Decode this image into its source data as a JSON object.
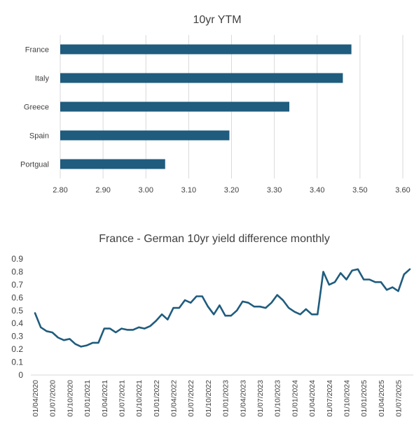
{
  "colors": {
    "series": "#1f5c7e",
    "grid": "#d9d9d9",
    "text": "#404040"
  },
  "chart_data": [
    {
      "type": "bar",
      "orientation": "horizontal",
      "title": "10yr YTM",
      "categories": [
        "France",
        "Italy",
        "Greece",
        "Spain",
        "Portgual"
      ],
      "values": [
        3.48,
        3.46,
        3.335,
        3.195,
        3.045
      ],
      "xlim": [
        2.8,
        3.6
      ],
      "xticks": [
        "2.80",
        "2.90",
        "3.00",
        "3.10",
        "3.20",
        "3.30",
        "3.40",
        "3.50",
        "3.60"
      ],
      "grid": "vertical",
      "legend": "none"
    },
    {
      "type": "line",
      "title": "France - German 10yr yield difference monthly",
      "x": [
        "2020-04",
        "2020-05",
        "2020-06",
        "2020-07",
        "2020-08",
        "2020-09",
        "2020-10",
        "2020-11",
        "2020-12",
        "2021-01",
        "2021-02",
        "2021-03",
        "2021-04",
        "2021-05",
        "2021-06",
        "2021-07",
        "2021-08",
        "2021-09",
        "2021-10",
        "2021-11",
        "2021-12",
        "2022-01",
        "2022-02",
        "2022-03",
        "2022-04",
        "2022-05",
        "2022-06",
        "2022-07",
        "2022-08",
        "2022-09",
        "2022-10",
        "2022-11",
        "2022-12",
        "2023-01",
        "2023-02",
        "2023-03",
        "2023-04",
        "2023-05",
        "2023-06",
        "2023-07",
        "2023-08",
        "2023-09",
        "2023-10",
        "2023-11",
        "2023-12",
        "2024-01",
        "2024-02",
        "2024-03",
        "2024-04",
        "2024-05",
        "2024-06",
        "2024-07",
        "2024-08",
        "2024-09",
        "2024-10",
        "2024-11",
        "2024-12",
        "2025-01",
        "2025-02",
        "2025-03",
        "2025-04",
        "2025-05",
        "2025-06",
        "2025-07",
        "2025-08",
        "2025-09"
      ],
      "values": [
        0.48,
        0.37,
        0.34,
        0.33,
        0.29,
        0.27,
        0.28,
        0.24,
        0.22,
        0.23,
        0.25,
        0.25,
        0.36,
        0.36,
        0.33,
        0.36,
        0.35,
        0.35,
        0.37,
        0.36,
        0.38,
        0.42,
        0.47,
        0.43,
        0.52,
        0.52,
        0.58,
        0.56,
        0.61,
        0.61,
        0.53,
        0.47,
        0.54,
        0.46,
        0.46,
        0.5,
        0.57,
        0.56,
        0.53,
        0.53,
        0.52,
        0.56,
        0.62,
        0.58,
        0.52,
        0.49,
        0.47,
        0.51,
        0.47,
        0.47,
        0.8,
        0.7,
        0.72,
        0.79,
        0.74,
        0.81,
        0.82,
        0.74,
        0.74,
        0.72,
        0.72,
        0.66,
        0.68,
        0.65,
        0.78,
        0.82
      ],
      "ylim": [
        0,
        0.9
      ],
      "yticks": [
        "0",
        "0.1",
        "0.2",
        "0.3",
        "0.4",
        "0.5",
        "0.6",
        "0.7",
        "0.8",
        "0.9"
      ],
      "xticks": [
        "01/04/2020",
        "01/07/2020",
        "01/10/2020",
        "01/01/2021",
        "01/04/2021",
        "01/07/2021",
        "01/10/2021",
        "01/01/2022",
        "01/04/2022",
        "01/07/2022",
        "01/10/2022",
        "01/01/2023",
        "01/04/2023",
        "01/07/2023",
        "01/10/2023",
        "01/01/2024",
        "01/04/2024",
        "01/07/2024",
        "01/10/2024",
        "01/01/2025",
        "01/04/2025",
        "01/07/2025"
      ],
      "grid": "none",
      "legend": "none"
    }
  ]
}
